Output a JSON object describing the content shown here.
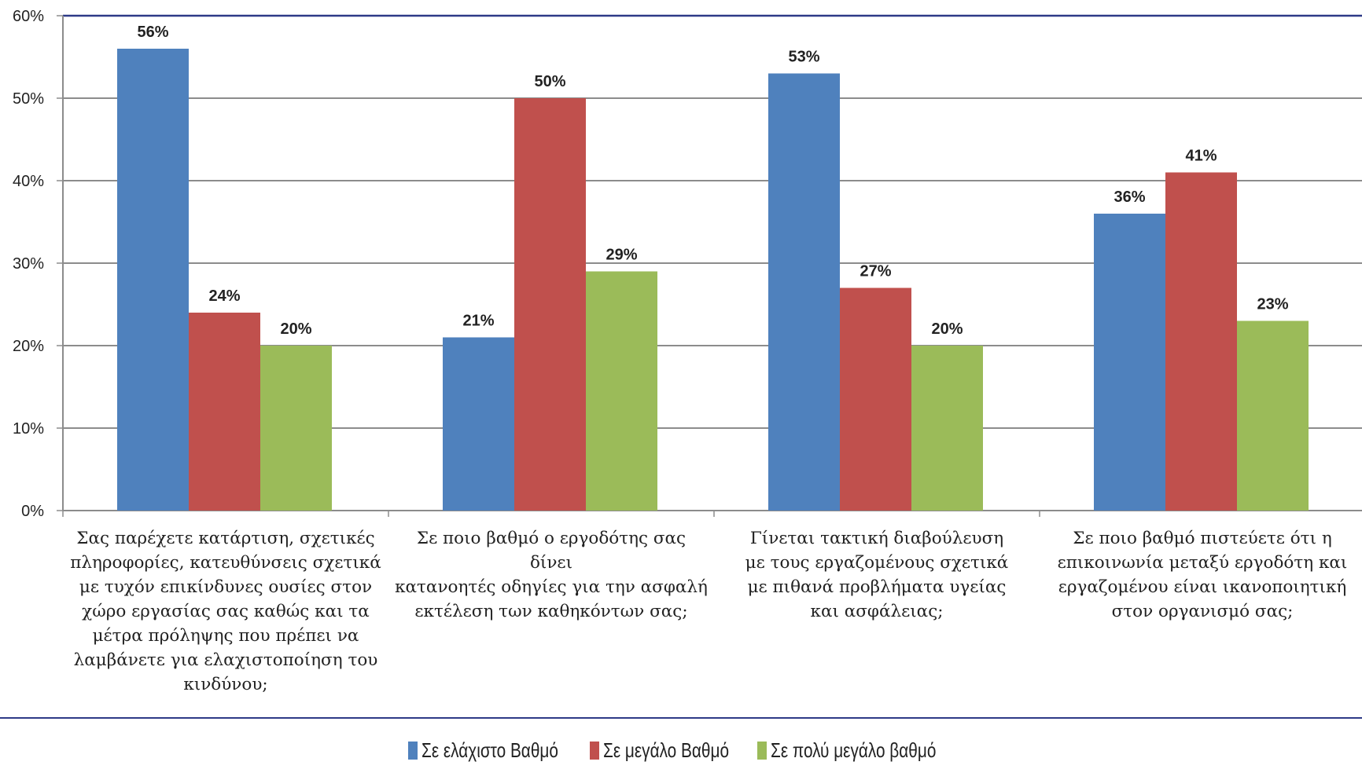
{
  "chart_data": {
    "type": "bar",
    "ylim": [
      0,
      60
    ],
    "yticks": [
      "0%",
      "10%",
      "20%",
      "30%",
      "40%",
      "50%",
      "60%"
    ],
    "grid": true,
    "legend_position": "bottom",
    "categories": [
      "Σας παρέχετε κατάρτιση, σχετικές πληροφορίες, κατευθύνσεις σχετικά με τυχόν επικίνδυνες ουσίες στον χώρο εργασίας σας καθώς και τα μέτρα πρόληψης που πρέπει να λαμβάνετε για ελαχιστοποίηση του κινδύνου;",
      "Σε ποιο βαθμό ο εργοδότης σας δίνει κατανοητές οδηγίες για την ασφαλή εκτέλεση των καθηκόντων σας;",
      "Γίνεται τακτική διαβούλευση με τους εργαζομένους σχετικά με πιθανά προβλήματα υγείας και ασφάλειας;",
      "Σε ποιο βαθμό πιστεύετε ότι η επικοινωνία μεταξύ εργοδότη και εργαζομένου είναι ικανοποιητική στον οργανισμό σας;"
    ],
    "category_lines": [
      [
        "Σας παρέχετε κατάρτιση, σχετικές",
        "πληροφορίες, κατευθύνσεις σχετικά",
        "με τυχόν επικίνδυνες ουσίες στον",
        "χώρο εργασίας σας καθώς και τα",
        "μέτρα πρόληψης που πρέπει να",
        "λαμβάνετε για ελαχιστοποίηση του",
        "κινδύνου;"
      ],
      [
        "Σε ποιο βαθμό ο εργοδότης σας δίνει",
        "κατανοητές οδηγίες για την ασφαλή",
        "εκτέλεση των καθηκόντων σας;"
      ],
      [
        "Γίνεται τακτική διαβούλευση",
        "με τους εργαζομένους σχετικά",
        "με πιθανά προβλήματα υγείας",
        "και ασφάλειας;"
      ],
      [
        "Σε ποιο βαθμό πιστεύετε ότι η",
        "επικοινωνία μεταξύ εργοδότη και",
        "εργαζομένου είναι ικανοποιητική",
        "στον οργανισμό σας;"
      ]
    ],
    "series": [
      {
        "name": "Σε ελάχιστο Βαθμό",
        "color": "#4F81BD",
        "values": [
          56,
          21,
          53,
          36
        ],
        "labels": [
          "56%",
          "21%",
          "53%",
          "36%"
        ]
      },
      {
        "name": "Σε μεγάλο Βαθμό",
        "color": "#C0504D",
        "values": [
          24,
          50,
          27,
          41
        ],
        "labels": [
          "24%",
          "50%",
          "27%",
          "41%"
        ]
      },
      {
        "name": "Σε πολύ μεγάλο βαθμό",
        "color": "#9BBB59",
        "values": [
          20,
          29,
          20,
          23
        ],
        "labels": [
          "20%",
          "29%",
          "20%",
          "23%"
        ]
      }
    ]
  }
}
